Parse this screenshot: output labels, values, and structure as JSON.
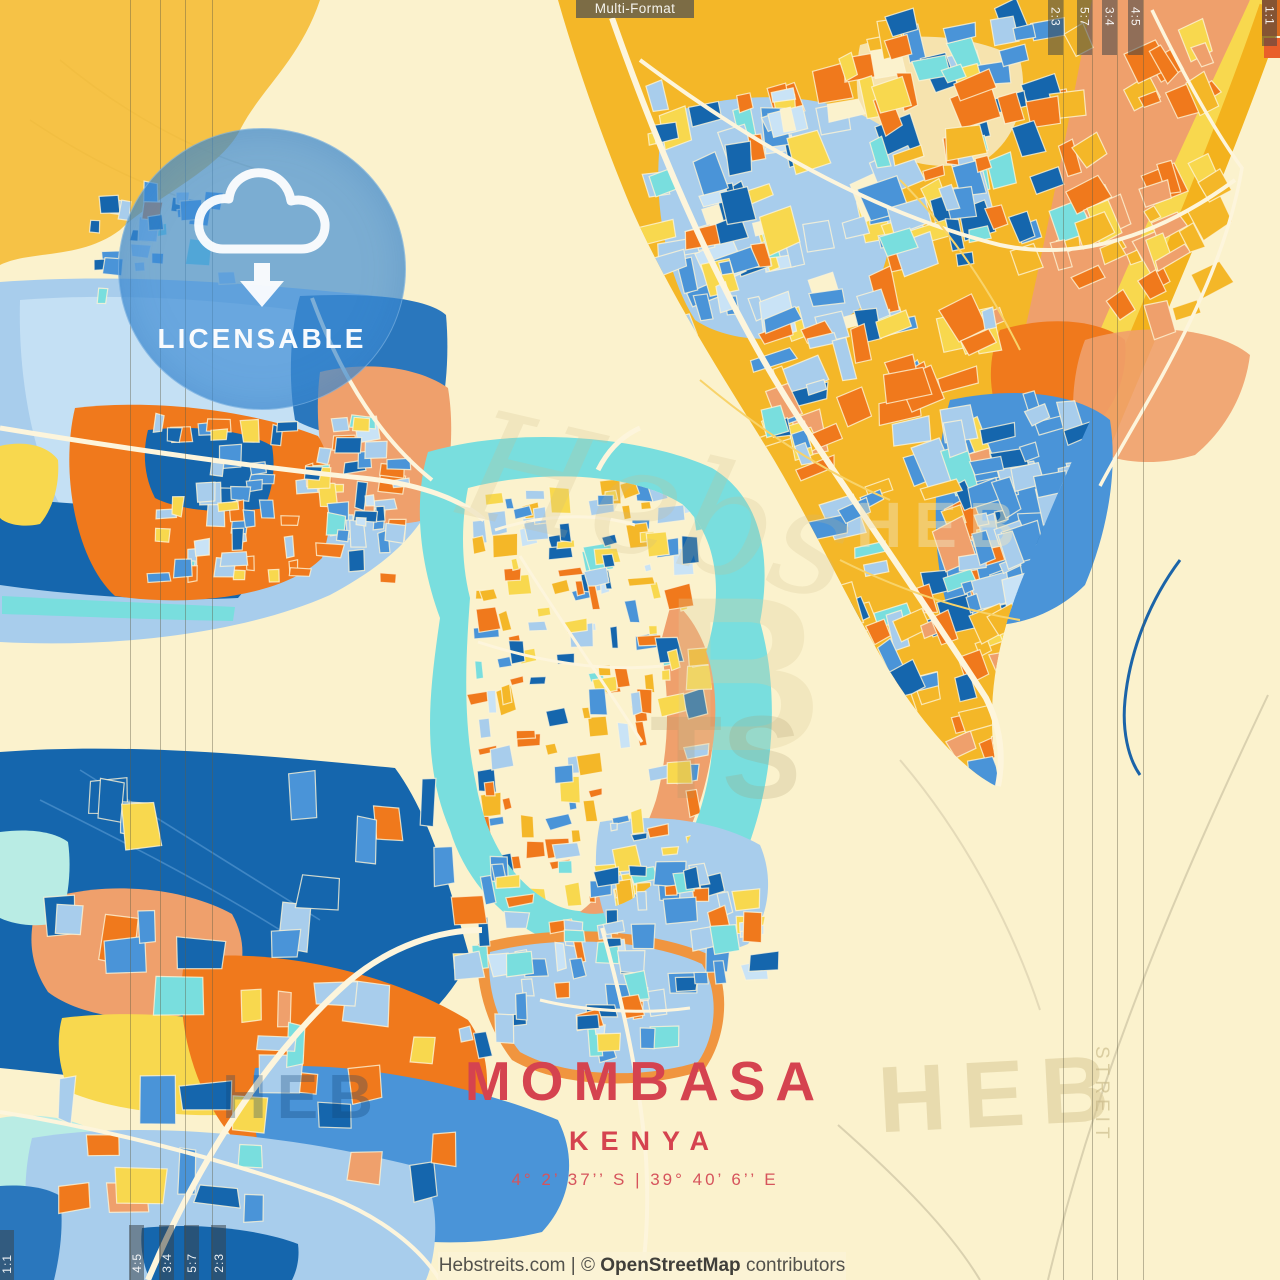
{
  "format_label": "Multi-Format",
  "badge": {
    "label": "LICENSABLE"
  },
  "title": {
    "city": "MOMBASA",
    "country": "KENYA",
    "coordinates": "4° 2’ 37’’ S  |  39° 40’ 6’’ E"
  },
  "footer": {
    "prefix": "Hebstreits.com | © ",
    "osm": "OpenStreetMap",
    "suffix": " contributors"
  },
  "crop_marks": {
    "top": [
      "2:3",
      "5:7",
      "3:4",
      "4:5"
    ],
    "top_edge": "1:1",
    "bottom": [
      "4:5",
      "3:4",
      "5:7",
      "2:3"
    ],
    "bottom_edge": "1:1"
  },
  "watermarks": {
    "script": "Hebs",
    "letter": "B",
    "letters2": "TS",
    "heb_right": "HEB",
    "heb_left": "HEB",
    "heb_mid": "HEB",
    "streit": "STREIT"
  },
  "colors": {
    "cream": "#fbf2cd",
    "golden": "#f4b728",
    "yellow": "#f8d84e",
    "tan": "#f6e3ae",
    "orange": "#f0791c",
    "orange_coast": "#f0953f",
    "salmon": "#efa06c",
    "deep_blue": "#1566ad",
    "deep_blue2": "#2a77bd",
    "medium_blue": "#4a94d8",
    "light_blue": "#a8cdec",
    "pale_blue": "#c9e3f6",
    "teal": "#79dede",
    "pale_teal": "#b9ece4",
    "road": "#fdf5dc",
    "title_red": "#d5434f"
  }
}
